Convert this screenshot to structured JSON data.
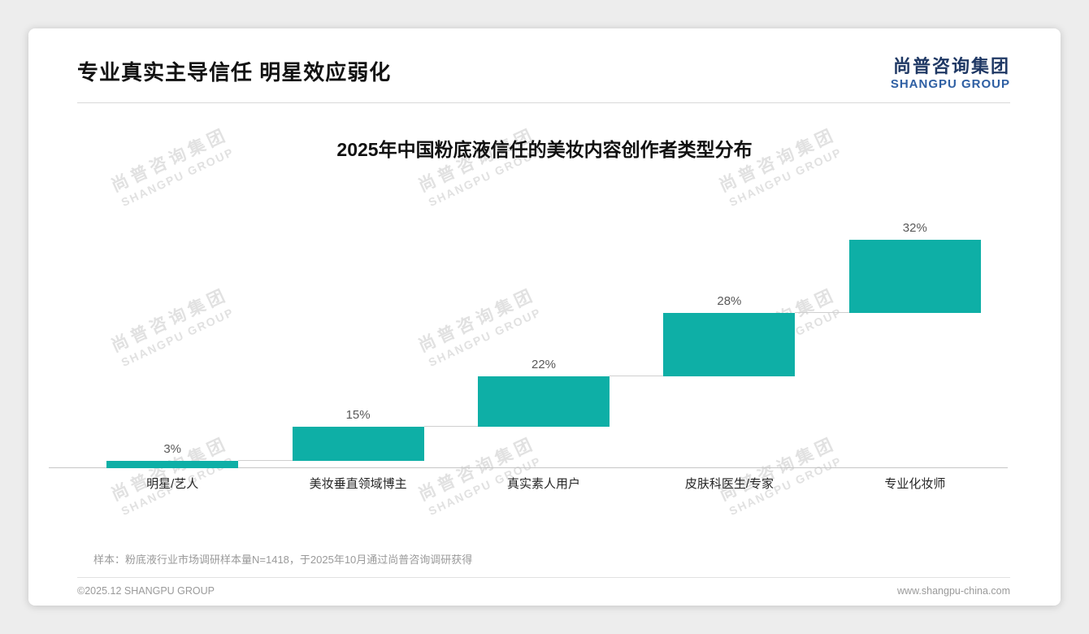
{
  "page": {
    "header": {
      "title": "专业真实主导信任 明星效应弱化",
      "logo_cn": "尚普咨询集团",
      "logo_en": "SHANGPU GROUP"
    },
    "footer": {
      "note": "样本：粉底液行业市场调研样本量N=1418，于2025年10月通过尚普咨询调研获得",
      "copyright": "©2025.12 SHANGPU GROUP",
      "website": "www.shangpu-china.com"
    },
    "watermark": {
      "line1": "尚普咨询集团",
      "line2": "SHANGPU GROUP"
    }
  },
  "chart_data": {
    "type": "bar",
    "subtype": "waterfall-cumulative",
    "title": "2025年中国粉底液信任的美妆内容创作者类型分布",
    "categories": [
      "明星/艺人",
      "美妆垂直领域博主",
      "真实素人用户",
      "皮肤科医生/专家",
      "专业化妆师"
    ],
    "values": [
      3,
      15,
      22,
      28,
      32
    ],
    "labels": [
      "3%",
      "15%",
      "22%",
      "28%",
      "32%"
    ],
    "unit": "%",
    "ylim": [
      0,
      100
    ],
    "grid": false,
    "legend": false,
    "bar_color": "#0eafa6",
    "connector_color": "#cfcfcf",
    "baseline_color": "#c6c6c6"
  }
}
